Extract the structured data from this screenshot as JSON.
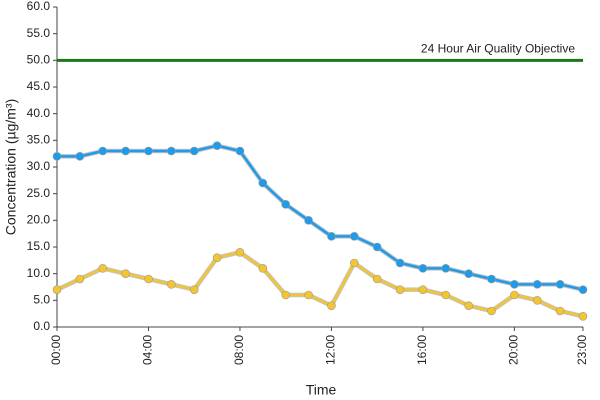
{
  "chart_data": {
    "type": "line",
    "x_label": "Time",
    "y_label": "Concentration (µg/m³)",
    "categories": [
      "00:00",
      null,
      null,
      null,
      "04:00",
      null,
      null,
      null,
      "08:00",
      null,
      null,
      null,
      "12:00",
      null,
      null,
      null,
      "16:00",
      null,
      null,
      null,
      "20:00",
      null,
      null,
      "23:00"
    ],
    "series": [
      {
        "color": "#1e9be9",
        "values": [
          32,
          32,
          33,
          33,
          33,
          33,
          33,
          34,
          33,
          27,
          23,
          20,
          17,
          17,
          15,
          12,
          11,
          11,
          10,
          9,
          8,
          8,
          8,
          7
        ]
      },
      {
        "color": "#f2c531",
        "values": [
          7,
          9,
          11,
          10,
          9,
          8,
          7,
          13,
          14,
          11,
          6,
          6,
          4,
          12,
          9,
          7,
          7,
          6,
          4,
          3,
          6,
          5,
          3,
          2
        ]
      }
    ],
    "objective": {
      "value": 50,
      "label": "24 Hour Air Quality Objective",
      "color": "#1a7a1a"
    },
    "ylim": [
      0,
      60
    ],
    "yticks": [
      {
        "value": 0,
        "label": "0.0"
      },
      {
        "value": 5,
        "label": "5.0"
      },
      {
        "value": 10,
        "label": "10.0"
      },
      {
        "value": 15,
        "label": "15.0"
      },
      {
        "value": 20,
        "label": "20.0"
      },
      {
        "value": 25,
        "label": "25.0"
      },
      {
        "value": 30,
        "label": "30.0"
      },
      {
        "value": 35,
        "label": "35.0"
      },
      {
        "value": 40,
        "label": "40.0"
      },
      {
        "value": 45,
        "label": "45.0"
      },
      {
        "value": 50,
        "label": "50.0"
      },
      {
        "value": 55,
        "label": "55.0"
      },
      {
        "value": 60,
        "label": "60.0"
      }
    ],
    "grid": false
  }
}
